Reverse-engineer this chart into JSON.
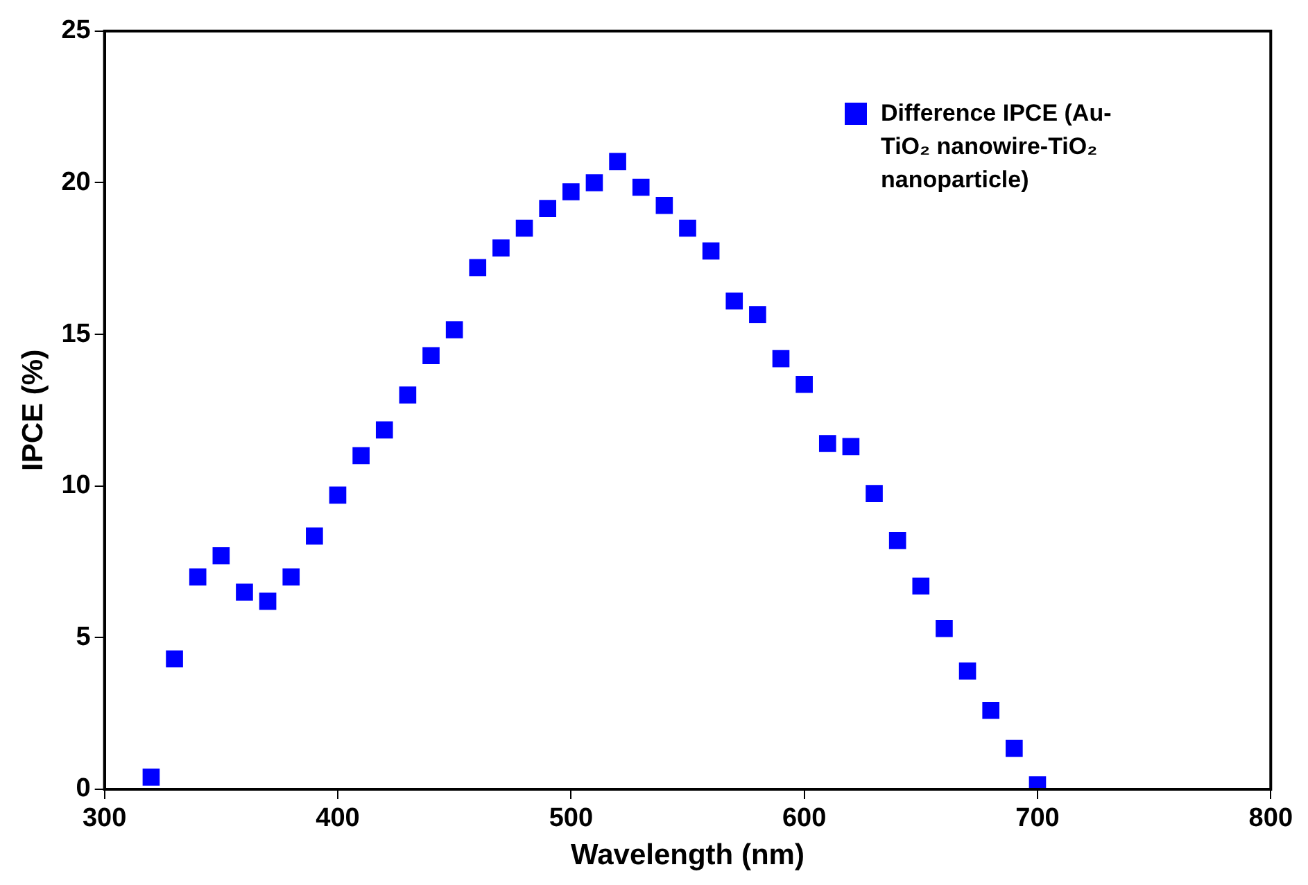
{
  "chart_data": {
    "type": "scatter",
    "xlabel": "Wavelength (nm)",
    "ylabel": "IPCE (%)",
    "xlim": [
      300,
      800
    ],
    "xticks": [
      300,
      400,
      500,
      600,
      700,
      800
    ],
    "ylim": [
      0,
      25
    ],
    "yticks": [
      0,
      5,
      10,
      15,
      20,
      25
    ],
    "grid": false,
    "legend": "top right",
    "marker": "square",
    "x": [
      320,
      330,
      340,
      350,
      360,
      370,
      380,
      390,
      400,
      410,
      420,
      430,
      440,
      450,
      460,
      470,
      480,
      490,
      500,
      510,
      520,
      530,
      540,
      550,
      560,
      570,
      580,
      590,
      600,
      610,
      620,
      630,
      640,
      650,
      660,
      670,
      680,
      690,
      700
    ],
    "series": [
      {
        "name": "Difference  IPCE (Au-TiO₂ nanowire-TiO₂ nanoparticle)",
        "color": "#0000ff",
        "values": [
          0.4,
          4.3,
          7.0,
          7.7,
          6.5,
          6.2,
          7.0,
          8.35,
          9.7,
          11.0,
          11.85,
          13.0,
          14.3,
          15.15,
          17.2,
          17.85,
          18.5,
          19.15,
          19.7,
          20.0,
          20.7,
          19.85,
          19.25,
          18.5,
          17.75,
          16.1,
          15.65,
          14.2,
          13.35,
          11.4,
          11.3,
          9.75,
          8.2,
          6.7,
          5.3,
          3.9,
          2.6,
          1.35,
          0.15
        ]
      }
    ]
  }
}
